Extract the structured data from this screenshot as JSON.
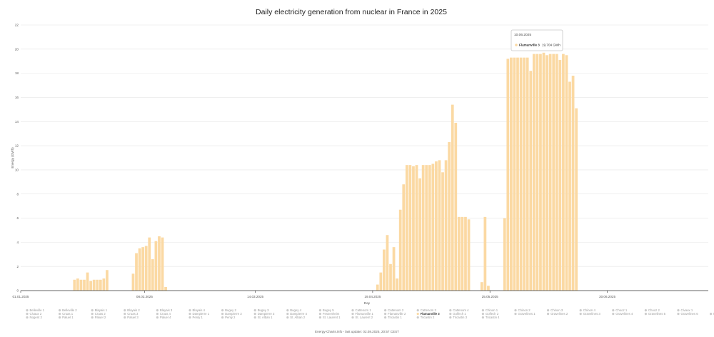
{
  "chart_data": {
    "type": "bar",
    "title": "Daily electricity generation from nuclear in France in 2025",
    "xlabel": "Day",
    "ylabel": "Energy (GWh)",
    "ylim": [
      0,
      22
    ],
    "yticks": [
      0,
      2,
      4,
      6,
      8,
      10,
      12,
      14,
      16,
      18,
      20,
      22
    ],
    "grid": true,
    "xticks": [
      "01.01.2025",
      "08.02.2025",
      "14.03.2025",
      "19.04.2025",
      "25.05.2025",
      "30.06.2025"
    ],
    "x_start": "01.01.2025",
    "x_end": "31.07.2025",
    "bar_color": "#fbd9a3",
    "series": [
      {
        "name": "Flamanville 3",
        "color": "#fbd9a3",
        "values": [
          {
            "date": "2025-01-17",
            "value": 0.9
          },
          {
            "date": "2025-01-18",
            "value": 1.0
          },
          {
            "date": "2025-01-19",
            "value": 0.9
          },
          {
            "date": "2025-01-20",
            "value": 0.9
          },
          {
            "date": "2025-01-21",
            "value": 1.5
          },
          {
            "date": "2025-01-22",
            "value": 0.8
          },
          {
            "date": "2025-01-23",
            "value": 0.9
          },
          {
            "date": "2025-01-24",
            "value": 0.9
          },
          {
            "date": "2025-01-25",
            "value": 0.9
          },
          {
            "date": "2025-01-26",
            "value": 1.0
          },
          {
            "date": "2025-01-27",
            "value": 1.7
          },
          {
            "date": "2025-02-04",
            "value": 1.4
          },
          {
            "date": "2025-02-05",
            "value": 3.1
          },
          {
            "date": "2025-02-06",
            "value": 3.5
          },
          {
            "date": "2025-02-07",
            "value": 3.6
          },
          {
            "date": "2025-02-08",
            "value": 3.7
          },
          {
            "date": "2025-02-09",
            "value": 4.4
          },
          {
            "date": "2025-02-10",
            "value": 2.6
          },
          {
            "date": "2025-02-11",
            "value": 4.1
          },
          {
            "date": "2025-02-12",
            "value": 4.5
          },
          {
            "date": "2025-02-13",
            "value": 4.4
          },
          {
            "date": "2025-02-14",
            "value": 0.3
          },
          {
            "date": "2025-04-20",
            "value": 0.5
          },
          {
            "date": "2025-04-21",
            "value": 1.5
          },
          {
            "date": "2025-04-22",
            "value": 3.4
          },
          {
            "date": "2025-04-23",
            "value": 4.6
          },
          {
            "date": "2025-04-24",
            "value": 2.2
          },
          {
            "date": "2025-04-25",
            "value": 3.6
          },
          {
            "date": "2025-04-26",
            "value": 1.0
          },
          {
            "date": "2025-04-27",
            "value": 6.7
          },
          {
            "date": "2025-04-28",
            "value": 8.8
          },
          {
            "date": "2025-04-29",
            "value": 10.4
          },
          {
            "date": "2025-04-30",
            "value": 10.4
          },
          {
            "date": "2025-05-01",
            "value": 10.3
          },
          {
            "date": "2025-05-02",
            "value": 10.4
          },
          {
            "date": "2025-05-03",
            "value": 9.3
          },
          {
            "date": "2025-05-04",
            "value": 10.4
          },
          {
            "date": "2025-05-05",
            "value": 10.4
          },
          {
            "date": "2025-05-06",
            "value": 10.4
          },
          {
            "date": "2025-05-07",
            "value": 10.5
          },
          {
            "date": "2025-05-08",
            "value": 10.7
          },
          {
            "date": "2025-05-09",
            "value": 10.8
          },
          {
            "date": "2025-05-10",
            "value": 9.8
          },
          {
            "date": "2025-05-11",
            "value": 10.8
          },
          {
            "date": "2025-05-12",
            "value": 12.3
          },
          {
            "date": "2025-05-13",
            "value": 15.4
          },
          {
            "date": "2025-05-14",
            "value": 13.9
          },
          {
            "date": "2025-05-15",
            "value": 6.1
          },
          {
            "date": "2025-05-16",
            "value": 6.1
          },
          {
            "date": "2025-05-17",
            "value": 6.1
          },
          {
            "date": "2025-05-18",
            "value": 5.9
          },
          {
            "date": "2025-05-22",
            "value": 0.7
          },
          {
            "date": "2025-05-23",
            "value": 6.1
          },
          {
            "date": "2025-05-24",
            "value": 0.4
          },
          {
            "date": "2025-05-29",
            "value": 6.0
          },
          {
            "date": "2025-05-30",
            "value": 19.2
          },
          {
            "date": "2025-05-31",
            "value": 19.3
          },
          {
            "date": "2025-06-01",
            "value": 19.3
          },
          {
            "date": "2025-06-02",
            "value": 19.3
          },
          {
            "date": "2025-06-03",
            "value": 19.3
          },
          {
            "date": "2025-06-04",
            "value": 19.3
          },
          {
            "date": "2025-06-05",
            "value": 19.3
          },
          {
            "date": "2025-06-06",
            "value": 18.2
          },
          {
            "date": "2025-06-07",
            "value": 19.6
          },
          {
            "date": "2025-06-08",
            "value": 19.6
          },
          {
            "date": "2025-06-09",
            "value": 19.6
          },
          {
            "date": "2025-06-10",
            "value": 19.704
          },
          {
            "date": "2025-06-11",
            "value": 19.5
          },
          {
            "date": "2025-06-12",
            "value": 19.6
          },
          {
            "date": "2025-06-13",
            "value": 19.6
          },
          {
            "date": "2025-06-14",
            "value": 19.6
          },
          {
            "date": "2025-06-15",
            "value": 19.1
          },
          {
            "date": "2025-06-16",
            "value": 19.6
          },
          {
            "date": "2025-06-17",
            "value": 19.5
          },
          {
            "date": "2025-06-18",
            "value": 17.3
          },
          {
            "date": "2025-06-19",
            "value": 17.8
          },
          {
            "date": "2025-06-20",
            "value": 15.1
          }
        ]
      }
    ],
    "tooltip": {
      "date": "10.06.2025",
      "series": "Flamanville 3",
      "value_text": "19,704 GWh"
    },
    "legend": [
      [
        "Belleville 1",
        "Belleville 2",
        "Blayais 1",
        "Blayais 2",
        "Blayais 3",
        "Blayais 4",
        "Bugey 2",
        "Bugey 3",
        "Bugey 4",
        "Bugey 5",
        "Cattenom 1",
        "Cattenom 2",
        "Cattenom 3",
        "Cattenom 4",
        "Chinon 1",
        "Chinon 2",
        "Chinon 3",
        "Chinon 4",
        "Chooz 1",
        "Chooz 2",
        "Civaux 1"
      ],
      [
        "Civaux 2",
        "Cruas 1",
        "Cruas 2",
        "Cruas 3",
        "Cruas 4",
        "Dampierre 1",
        "Dampierre 2",
        "Dampierre 3",
        "Dampierre 4",
        "Fessenheim",
        "Flamanville 1",
        "Flamanville 2",
        "Flamanville 3",
        "Golfech 1",
        "Golfech 2",
        "Gravelines 1",
        "Gravelines 2",
        "Gravelines 3",
        "Gravelines 4",
        "Gravelines 5",
        "Gravelines 6",
        "Nogent 1"
      ],
      [
        "Nogent 2",
        "Paluel 1",
        "Paluel 2",
        "Paluel 3",
        "Paluel 4",
        "Penly 1",
        "Penly 2",
        "St. Alban 1",
        "St. Alban 2",
        "St. Laurent 1",
        "St. Laurent 2",
        "Tricastin 1",
        "Tricastin 2",
        "Tricastin 3",
        "Tricastin 4"
      ]
    ],
    "legend_active": "Flamanville 3",
    "legend_active_color": "#fbd9a3",
    "legend_inactive_color": "#cccccc"
  },
  "footer": "Energy-Charts.info - last update: 02.08.2025, 20:57 CEST"
}
